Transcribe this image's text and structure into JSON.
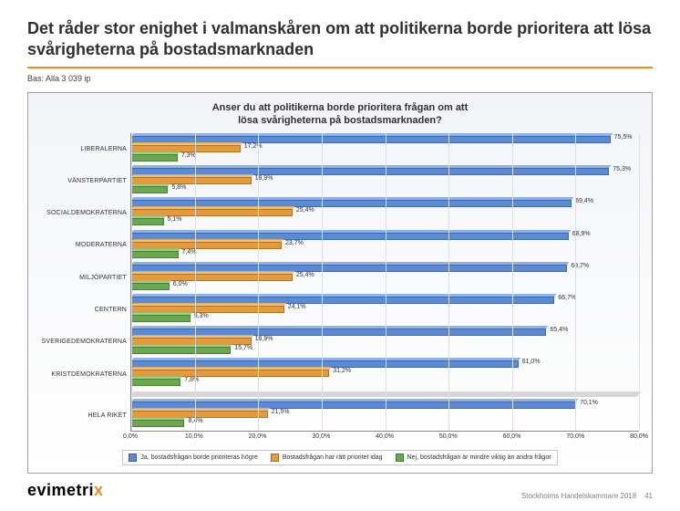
{
  "title": "Det råder stor enighet i valmanskåren om att politikerna borde prioritera att lösa svårigheterna på bostadsmarknaden",
  "base": "Bas: Alla 3 039 ip",
  "chart": {
    "title_l1": "Anser du att politikerna borde prioritera frågan om att",
    "title_l2": "lösa svårigheterna på bostadsmarknaden?",
    "type": "grouped-horizontal-bar",
    "xmin": 0,
    "xmax": 80,
    "xtick_step": 10,
    "xtick_labels": [
      "0,0%",
      "10,0%",
      "20,0%",
      "30,0%",
      "40,0%",
      "50,0%",
      "60,0%",
      "70,0%",
      "80,0%"
    ],
    "series": [
      {
        "key": "ja",
        "label": "Ja, bostadsfrågan borde prioriteras högre",
        "color": "#5a8bd6",
        "top": "#7aa6e4"
      },
      {
        "key": "ratt",
        "label": "Bostadsfrågan har rätt prioritet idag",
        "color": "#e69a3a",
        "top": "#f2b45e"
      },
      {
        "key": "nej",
        "label": "Nej, bostadsfrågan är mindre viktig än andra frågor",
        "color": "#6aa84f",
        "top": "#8fc57a"
      }
    ],
    "groups": [
      {
        "name": "LIBERALERNA",
        "values": {
          "ja": 75.5,
          "ratt": 17.2,
          "nej": 7.3
        },
        "labels": {
          "ja": "75,5%",
          "ratt": "17,2%",
          "nej": "7,3%"
        }
      },
      {
        "name": "VÄNSTERPARTIET",
        "values": {
          "ja": 75.3,
          "ratt": 18.9,
          "nej": 5.8
        },
        "labels": {
          "ja": "75,3%",
          "ratt": "18,9%",
          "nej": "5,8%"
        }
      },
      {
        "name": "SOCIALDEMOKRATERNA",
        "values": {
          "ja": 69.4,
          "ratt": 25.4,
          "nej": 5.1
        },
        "labels": {
          "ja": "69,4%",
          "ratt": "25,4%",
          "nej": "5,1%"
        }
      },
      {
        "name": "MODERATERNA",
        "values": {
          "ja": 68.9,
          "ratt": 23.7,
          "nej": 7.4
        },
        "labels": {
          "ja": "68,9%",
          "ratt": "23,7%",
          "nej": "7,4%"
        }
      },
      {
        "name": "MILJÖPARTIET",
        "values": {
          "ja": 68.7,
          "ratt": 25.4,
          "nej": 6.0
        },
        "labels": {
          "ja": "68,7%",
          "ratt": "25,4%",
          "nej": "6,0%"
        }
      },
      {
        "name": "CENTERN",
        "values": {
          "ja": 66.7,
          "ratt": 24.1,
          "nej": 9.3
        },
        "labels": {
          "ja": "66,7%",
          "ratt": "24,1%",
          "nej": "9,3%"
        }
      },
      {
        "name": "SVERIGEDEMOKRATERNA",
        "values": {
          "ja": 65.4,
          "ratt": 18.9,
          "nej": 15.7
        },
        "labels": {
          "ja": "65,4%",
          "ratt": "18,9%",
          "nej": "15,7%"
        }
      },
      {
        "name": "KRISTDEMOKRATERNA",
        "values": {
          "ja": 61.0,
          "ratt": 31.2,
          "nej": 7.8
        },
        "labels": {
          "ja": "61,0%",
          "ratt": "31,2%",
          "nej": "7,8%"
        }
      },
      {
        "name": "HELA RIKET",
        "values": {
          "ja": 70.1,
          "ratt": 21.5,
          "nej": 8.4
        },
        "labels": {
          "ja": "70,1%",
          "ratt": "21,5%",
          "nej": "8,4%"
        },
        "gap_before": true
      }
    ],
    "background": "#f2f4f7",
    "grid_color": "#dcdfe3",
    "label_fontsize": 7,
    "title_fontsize": 11
  },
  "logo": {
    "text": "evimetri",
    "accent": "x",
    "accent_color": "#f28a1a"
  },
  "source": "Stockholms Handelskammare 2018",
  "page_number": "41",
  "rule_color": "#f28a1a"
}
